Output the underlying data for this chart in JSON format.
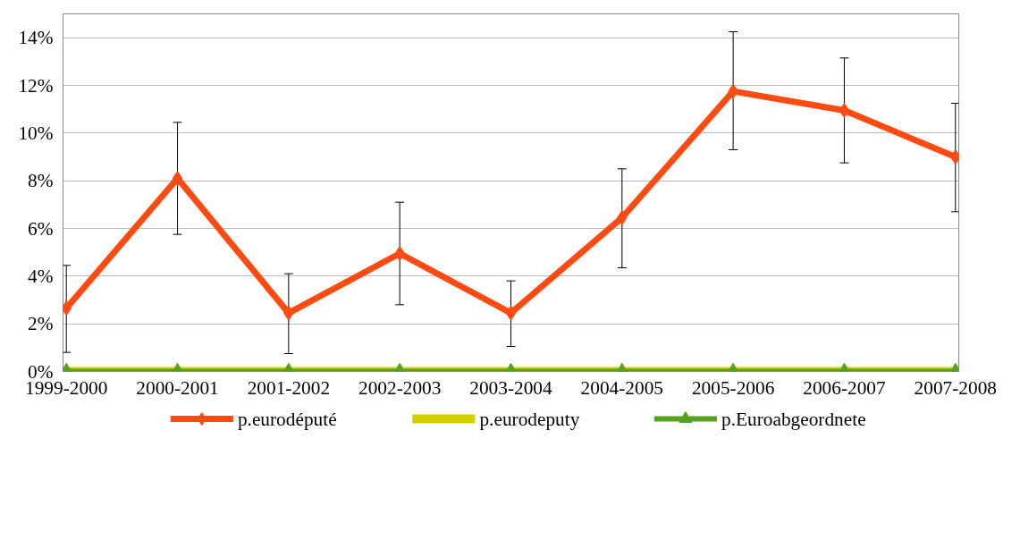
{
  "chart_data": {
    "type": "line",
    "categories": [
      "1999-2000",
      "2000-2001",
      "2001-2002",
      "2002-2003",
      "2003-2004",
      "2004-2005",
      "2005-2006",
      "2006-2007",
      "2007-2008"
    ],
    "series": [
      {
        "name": "p.eurodéputé",
        "color": "#ff4b12",
        "marker": "diamond",
        "values": [
          2.65,
          8.1,
          2.45,
          4.95,
          2.45,
          6.45,
          11.75,
          10.95,
          9.0
        ],
        "errors": [
          [
            0.8,
            4.45
          ],
          [
            5.75,
            10.45
          ],
          [
            0.75,
            4.1
          ],
          [
            2.8,
            7.1
          ],
          [
            1.05,
            3.8
          ],
          [
            4.35,
            8.5
          ],
          [
            9.3,
            14.25
          ],
          [
            8.75,
            13.15
          ],
          [
            6.7,
            11.25
          ]
        ]
      },
      {
        "name": "p.eurodeputy",
        "color": "#d4d000",
        "marker": "none",
        "values": [
          0,
          0,
          0,
          0,
          0,
          0,
          0,
          0,
          0
        ]
      },
      {
        "name": "p.Euroabgeordnete",
        "color": "#56a21c",
        "marker": "triangle",
        "values": [
          0,
          0,
          0,
          0,
          0,
          0,
          0,
          0,
          0
        ]
      }
    ],
    "ylim": [
      0,
      15
    ],
    "yticks": [
      {
        "value": 0,
        "label": "0%"
      },
      {
        "value": 2,
        "label": "2%"
      },
      {
        "value": 4,
        "label": "4%"
      },
      {
        "value": 6,
        "label": "6%"
      },
      {
        "value": 8,
        "label": "8%"
      },
      {
        "value": 10,
        "label": "10%"
      },
      {
        "value": 12,
        "label": "12%"
      },
      {
        "value": 14,
        "label": "14%"
      }
    ],
    "grid": "y",
    "legend": "bottom",
    "line_style": "solid"
  }
}
